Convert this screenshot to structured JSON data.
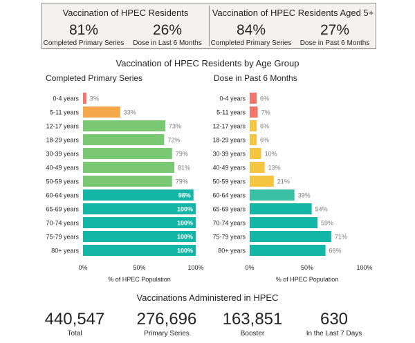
{
  "kpi": {
    "left": {
      "title": "Vaccination of HPEC Residents",
      "items": [
        {
          "value": "81%",
          "label": "Completed Primary Series"
        },
        {
          "value": "26%",
          "label": "Dose in Last 6 Months"
        }
      ]
    },
    "right": {
      "title": "Vaccination of HPEC Residents Aged 5+",
      "items": [
        {
          "value": "84%",
          "label": "Completed Primary Series"
        },
        {
          "value": "27%",
          "label": "Dose in Past 6 Months"
        }
      ]
    }
  },
  "chart_title": "Vaccination of HPEC Residents by Age Group",
  "colors": {
    "red": "#f0756a",
    "orange": "#f5a84a",
    "yellow": "#f5c542",
    "green": "#7ac873",
    "teal": "#13b5a6",
    "teal_dim": "#3cc0a3"
  },
  "chart_data": [
    {
      "type": "bar",
      "orientation": "horizontal",
      "title": "Completed Primary Series",
      "xlabel": "% of HPEC Population",
      "ylabel": "",
      "xlim": [
        0,
        100
      ],
      "xticks": [
        "0%",
        "50%",
        "100%"
      ],
      "grid": false,
      "categories": [
        "0-4 years",
        "5-11 years",
        "12-17 years",
        "18-29 years",
        "30-39 years",
        "40-49 years",
        "50-59 years",
        "60-64 years",
        "65-69 years",
        "70-74 years",
        "75-79 years",
        "80+ years"
      ],
      "values": [
        3,
        33,
        73,
        72,
        79,
        81,
        79,
        98,
        100,
        100,
        100,
        100
      ],
      "value_labels": [
        "3%",
        "33%",
        "73%",
        "72%",
        "79%",
        "81%",
        "79%",
        "98%",
        "100%",
        "100%",
        "100%",
        "100%"
      ],
      "bar_colors": [
        "#f0756a",
        "#f5a84a",
        "#7ac873",
        "#7ac873",
        "#7ac873",
        "#7ac873",
        "#7ac873",
        "#13b5a6",
        "#13b5a6",
        "#13b5a6",
        "#13b5a6",
        "#13b5a6"
      ]
    },
    {
      "type": "bar",
      "orientation": "horizontal",
      "title": "Dose in Past 6 Months",
      "xlabel": "% of HPEC Population",
      "ylabel": "",
      "xlim": [
        0,
        100
      ],
      "xticks": [
        "0%",
        "50%",
        "100%"
      ],
      "grid": false,
      "categories": [
        "0-4 years",
        "5-11 years",
        "12-17 years",
        "18-29 years",
        "30-39 years",
        "40-49 years",
        "50-59 years",
        "60-64 years",
        "65-69 years",
        "70-74 years",
        "75-79 years",
        "80+ years"
      ],
      "values": [
        6,
        7,
        6,
        6,
        10,
        13,
        21,
        39,
        54,
        59,
        71,
        66
      ],
      "value_labels": [
        "6%",
        "7%",
        "6%",
        "6%",
        "10%",
        "13%",
        "21%",
        "39%",
        "54%",
        "59%",
        "71%",
        "66%"
      ],
      "bar_colors": [
        "#f0756a",
        "#f0756a",
        "#f5c542",
        "#f5c542",
        "#f5c542",
        "#f5c542",
        "#f5c542",
        "#3cc0a3",
        "#13b5a6",
        "#13b5a6",
        "#13b5a6",
        "#13b5a6"
      ]
    }
  ],
  "admin": {
    "title": "Vaccinations Administered in HPEC",
    "stats": [
      {
        "value": "440,547",
        "label": "Total"
      },
      {
        "value": "276,696",
        "label": "Primary Series"
      },
      {
        "value": "163,851",
        "label": "Booster"
      },
      {
        "value": "630",
        "label": "In the Last 7 Days"
      }
    ]
  }
}
